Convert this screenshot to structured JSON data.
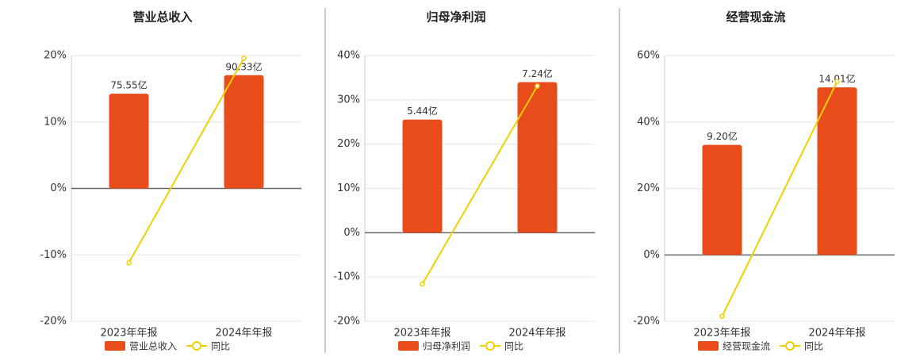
{
  "chart_data": [
    {
      "type": "bar",
      "title": "营业总收入",
      "categories": [
        "2023年年报",
        "2024年年报"
      ],
      "series": [
        {
          "name": "营业总收入",
          "type": "bar",
          "color": "#e84c1a",
          "axis": "y2",
          "values": [
            75.55,
            90.33
          ],
          "value_labels": [
            "75.55亿",
            "90.33亿"
          ]
        },
        {
          "name": "同比",
          "type": "line",
          "color": "#f0d000",
          "values": [
            -11.2,
            19.6
          ]
        }
      ],
      "ylim": [
        -20,
        20
      ],
      "y2lim": [
        -106,
        106
      ],
      "yticks": [
        {
          "value": -20,
          "label": "-20%"
        },
        {
          "value": -10,
          "label": "-10%"
        },
        {
          "value": 0,
          "label": "0%"
        },
        {
          "value": 10,
          "label": "10%"
        },
        {
          "value": 20,
          "label": "20%"
        }
      ],
      "grid": true
    },
    {
      "type": "bar",
      "title": "归母净利润",
      "categories": [
        "2023年年报",
        "2024年年报"
      ],
      "series": [
        {
          "name": "归母净利润",
          "type": "bar",
          "color": "#e84c1a",
          "axis": "y2",
          "values": [
            5.44,
            7.24
          ],
          "value_labels": [
            "5.44亿",
            "7.24亿"
          ]
        },
        {
          "name": "同比",
          "type": "line",
          "color": "#f0d000",
          "values": [
            -11.6,
            33.1
          ]
        }
      ],
      "ylim": [
        -20,
        40
      ],
      "y2lim": [
        -4.26,
        8.52
      ],
      "yticks": [
        {
          "value": -20,
          "label": "-20%"
        },
        {
          "value": -10,
          "label": "-10%"
        },
        {
          "value": 0,
          "label": "0%"
        },
        {
          "value": 10,
          "label": "10%"
        },
        {
          "value": 20,
          "label": "20%"
        },
        {
          "value": 30,
          "label": "30%"
        },
        {
          "value": 40,
          "label": "40%"
        }
      ],
      "grid": true
    },
    {
      "type": "bar",
      "title": "经营现金流",
      "categories": [
        "2023年年报",
        "2024年年报"
      ],
      "series": [
        {
          "name": "经营现金流",
          "type": "bar",
          "color": "#e84c1a",
          "axis": "y2",
          "values": [
            9.2,
            14.01
          ],
          "value_labels": [
            "9.20亿",
            "14.01亿"
          ]
        },
        {
          "name": "同比",
          "type": "line",
          "color": "#f0d000",
          "values": [
            -18.5,
            52.2
          ]
        }
      ],
      "ylim": [
        -20,
        60
      ],
      "y2lim": [
        -5.55,
        16.67
      ],
      "yticks": [
        {
          "value": -20,
          "label": "-20%"
        },
        {
          "value": 0,
          "label": "0%"
        },
        {
          "value": 20,
          "label": "20%"
        },
        {
          "value": 40,
          "label": "40%"
        },
        {
          "value": 60,
          "label": "60%"
        }
      ],
      "grid": true
    }
  ]
}
